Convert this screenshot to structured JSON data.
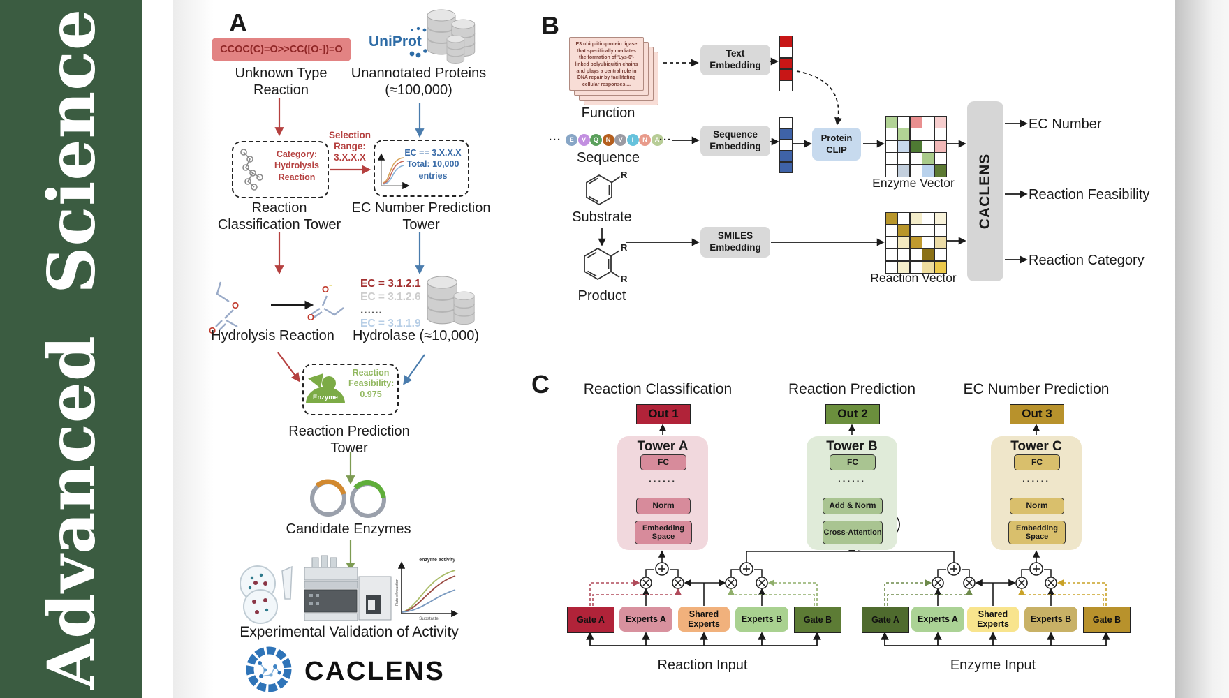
{
  "journal": {
    "brand": "Advanced Science",
    "color": "#3b5c41"
  },
  "panelA": {
    "label": "A",
    "smiles": "CCOC(C)=O>>CC([O-])=O",
    "unknown_reaction": "Unknown Type Reaction",
    "uniprot": "UniProt",
    "unannotated": "Unannotated Proteins (≈100,000)",
    "selection": "Selection Range: 3.X.X.X",
    "category_box": "Category: Hydrolysis Reaction",
    "ec_box": [
      "EC == 3.X.X.X",
      "Total: 10,000",
      "entries"
    ],
    "tower_classification": "Reaction Classification Tower",
    "tower_ec": "EC Number Prediction Tower",
    "hydrolysis": "Hydrolysis Reaction",
    "ec_list": [
      "EC = 3.1.2.1",
      "EC = 3.1.2.6",
      "......",
      "EC = 3.1.1.9"
    ],
    "hydrolase": "Hydrolase (≈10,000)",
    "enzyme": "Enzyme",
    "feasibility": "Reaction Feasibility: 0.975",
    "tower_prediction": "Reaction Prediction Tower",
    "candidates": "Candidate Enzymes",
    "validation": "Experimental Validation of Activity",
    "brand": "CACLENS",
    "minichart": {
      "title": "enzyme activity",
      "ylabel": "Rate of reaction",
      "xlabel": "Substrate"
    }
  },
  "panelB": {
    "label": "B",
    "function_card": "E3 ubiquitin-protein ligase that specifically mediates the formation of 'Lys-6'-linked polyubiquitin chains and plays a central role in DNA repair by facilitating cellular responses....",
    "function": "Function",
    "sequence": "Sequence",
    "ellipsis": "···",
    "residues": [
      {
        "l": "E",
        "c": "#88a6c6"
      },
      {
        "l": "V",
        "c": "#c28fe0"
      },
      {
        "l": "Q",
        "c": "#5ba05c"
      },
      {
        "l": "N",
        "c": "#b55f1e"
      },
      {
        "l": "V",
        "c": "#9b9ba3"
      },
      {
        "l": "I",
        "c": "#66c2dc"
      },
      {
        "l": "N",
        "c": "#e89b8b"
      },
      {
        "l": "A",
        "c": "#b7cc96"
      }
    ],
    "substrate": "Substrate",
    "product": "Product",
    "r": "R",
    "text_embedding": "Text Embedding",
    "sequence_embedding": "Sequence Embedding",
    "smiles_embedding": "SMILES Embedding",
    "protein_clip": "Protein CLIP",
    "enzyme_vector": "Enzyme Vector",
    "reaction_vector": "Reaction Vector",
    "caclens": "CACLENS",
    "outputs": [
      "EC Number",
      "Reaction Feasibility",
      "Reaction Category"
    ],
    "text_vector": [
      "#c81616",
      "#ffffff",
      "#c81616",
      "#c81616",
      "#ffffff"
    ],
    "sequence_vector": [
      "#ffffff",
      "#3f63a8",
      "#ffffff",
      "#3f63a8",
      "#3f63a8"
    ],
    "enzyme_grid": [
      [
        "#b2d395",
        "#ffffff",
        "#e98f8f",
        "#ffffff",
        "#f6cdcd"
      ],
      [
        "#ffffff",
        "#b2d395",
        "#ffffff",
        "#ffffff",
        "#ffffff"
      ],
      [
        "#ffffff",
        "#c7d8ec",
        "#4e7a33",
        "#ffffff",
        "#f2b8b8"
      ],
      [
        "#ffffff",
        "#ffffff",
        "#ffffff",
        "#a9cb8a",
        "#ffffff"
      ],
      [
        "#ffffff",
        "#c3cfdd",
        "#ffffff",
        "#b9d2ec",
        "#5c7a33"
      ]
    ],
    "reaction_grid": [
      [
        "#b8962b",
        "#ffffff",
        "#f3ecc9",
        "#ffffff",
        "#f8f2da"
      ],
      [
        "#ffffff",
        "#b8962b",
        "#ffffff",
        "#ffffff",
        "#ffffff"
      ],
      [
        "#ffffff",
        "#f3e9c0",
        "#c09a2e",
        "#ffffff",
        "#ecdca6"
      ],
      [
        "#ffffff",
        "#ffffff",
        "#ffffff",
        "#8a7015",
        "#ffffff"
      ],
      [
        "#ffffff",
        "#f5eecb",
        "#ffffff",
        "#eedd9f",
        "#ecc94b"
      ]
    ]
  },
  "panelC": {
    "label": "C",
    "headings": [
      "Reaction Classification",
      "Reaction Prediction",
      "EC Number Prediction"
    ],
    "outs": [
      "Out 1",
      "Out 2",
      "Out 3"
    ],
    "dots": "······",
    "towers": [
      {
        "name": "Tower A",
        "layers": [
          "FC",
          "Norm",
          "Embedding Space"
        ]
      },
      {
        "name": "Tower B",
        "layers": [
          "FC",
          "Add & Norm",
          "Cross-Attention"
        ]
      },
      {
        "name": "Tower C",
        "layers": [
          "FC",
          "Norm",
          "Embedding Space"
        ]
      }
    ],
    "moe_left": {
      "boxes": [
        "Gate A",
        "Experts A",
        "Shared Experts",
        "Experts B",
        "Gate B"
      ],
      "input": "Reaction Input"
    },
    "moe_right": {
      "boxes": [
        "Gate A",
        "Experts A",
        "Shared Experts",
        "Experts B",
        "Gate B"
      ],
      "input": "Enzyme Input"
    }
  }
}
